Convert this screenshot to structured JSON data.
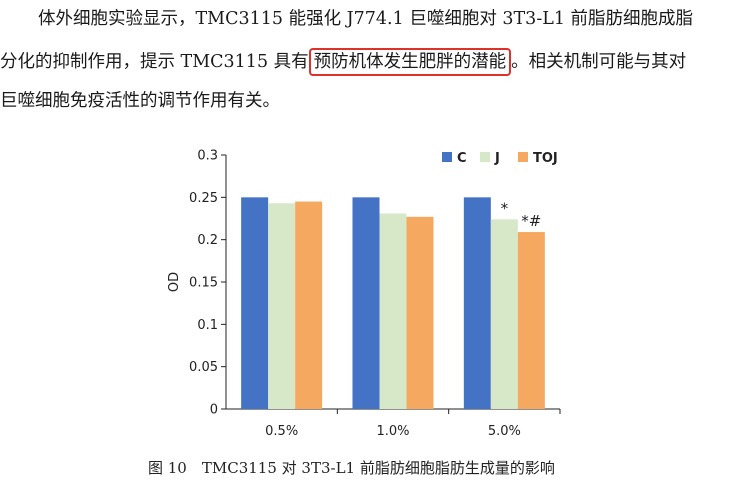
{
  "paragraph": {
    "line1": "体外细胞实验显示，TMC3115 能强化 J774.1 巨噬细胞对 3T3-L1 前脂肪细胞成脂",
    "line2_before": "分化的抑制作用，提示 TMC3115 具有",
    "line2_highlight": "预防机体发生肥胖的潜能",
    "line2_after": "。相关机制可能与其对",
    "line3": "巨噬细胞免疫活性的调节作用有关。"
  },
  "highlight_color": "#e0302a",
  "caption": "图 10　TMC3115 对 3T3-L1 前脂肪细胞脂肪生成量的影响",
  "chart_data": {
    "type": "bar",
    "categories": [
      "0.5%",
      "1.0%",
      "5.0%"
    ],
    "series": [
      {
        "name": "C",
        "values": [
          0.25,
          0.25,
          0.25
        ],
        "color": "#4472c4"
      },
      {
        "name": "J",
        "values": [
          0.243,
          0.231,
          0.224
        ],
        "color": "#d6e8c8"
      },
      {
        "name": "TOJ",
        "values": [
          0.245,
          0.227,
          0.209
        ],
        "color": "#f5a860"
      }
    ],
    "ylabel": "OD",
    "xlabel": "",
    "ylim": [
      0,
      0.3
    ],
    "yticks": [
      "0",
      "0.05",
      "0.1",
      "0.15",
      "0.2",
      "0.25",
      "0.3"
    ],
    "legend_position": "top-right",
    "annotations": [
      {
        "category": "5.0%",
        "series": "J",
        "text": "*"
      },
      {
        "category": "5.0%",
        "series": "TOJ",
        "text": "*#"
      }
    ]
  }
}
